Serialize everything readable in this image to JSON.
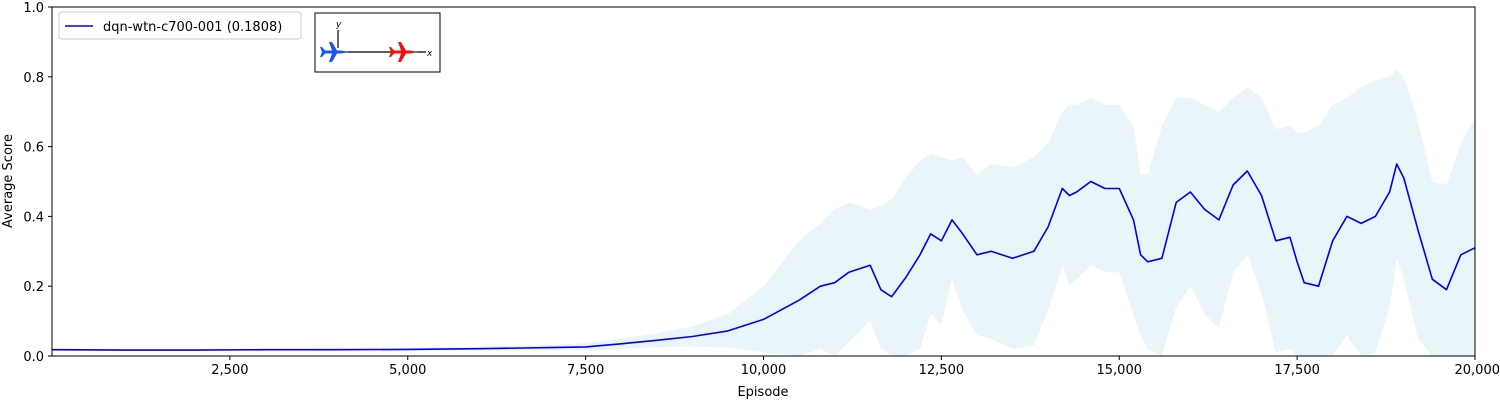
{
  "chart_data": {
    "type": "line",
    "xlabel": "Episode",
    "ylabel": "Average Score",
    "xlim": [
      0,
      20000
    ],
    "ylim": [
      0,
      1.0
    ],
    "x_ticks": [
      2500,
      5000,
      7500,
      10000,
      12500,
      15000,
      17500,
      20000
    ],
    "x_tick_labels": [
      "2,500",
      "5,000",
      "7,500",
      "10,000",
      "12,500",
      "15,000",
      "17,500",
      "20,000"
    ],
    "y_ticks": [
      0.0,
      0.2,
      0.4,
      0.6,
      0.8,
      1.0
    ],
    "y_tick_labels": [
      "0.0",
      "0.2",
      "0.4",
      "0.6",
      "0.8",
      "1.0"
    ],
    "grid": false,
    "legend": {
      "position": "top-left",
      "entries": [
        "dqn-wtn-c700-001 (0.1808)"
      ]
    },
    "inset_icon": "two-aircraft-xy-diagram-icon",
    "inset_axis_labels": [
      "y",
      "x"
    ],
    "colors": {
      "mean_line": "#0000ee",
      "std_band": "#add8e6",
      "blue_aircraft": "#1a55ee",
      "red_aircraft": "#ee1111"
    },
    "series": [
      {
        "name": "dqn-wtn-c700-001 (0.1808)",
        "x": [
          0,
          1000,
          2000,
          3000,
          4000,
          5000,
          6000,
          7000,
          7500,
          8000,
          8500,
          9000,
          9500,
          10000,
          10500,
          10800,
          11000,
          11200,
          11500,
          11650,
          11800,
          12000,
          12200,
          12350,
          12500,
          12650,
          12800,
          13000,
          13200,
          13500,
          13800,
          14000,
          14200,
          14300,
          14400,
          14600,
          14800,
          15000,
          15200,
          15300,
          15400,
          15600,
          15800,
          16000,
          16200,
          16400,
          16600,
          16800,
          17000,
          17200,
          17400,
          17500,
          17600,
          17800,
          18000,
          18200,
          18400,
          18600,
          18800,
          18900,
          19000,
          19200,
          19400,
          19600,
          19800,
          20000
        ],
        "mean": [
          0.018,
          0.017,
          0.017,
          0.018,
          0.018,
          0.019,
          0.021,
          0.024,
          0.026,
          0.035,
          0.045,
          0.056,
          0.072,
          0.105,
          0.16,
          0.2,
          0.21,
          0.24,
          0.26,
          0.19,
          0.17,
          0.225,
          0.29,
          0.35,
          0.33,
          0.39,
          0.35,
          0.29,
          0.3,
          0.28,
          0.3,
          0.37,
          0.48,
          0.46,
          0.47,
          0.5,
          0.48,
          0.48,
          0.39,
          0.29,
          0.27,
          0.28,
          0.44,
          0.47,
          0.42,
          0.39,
          0.49,
          0.53,
          0.46,
          0.33,
          0.34,
          0.27,
          0.21,
          0.2,
          0.33,
          0.4,
          0.38,
          0.4,
          0.47,
          0.55,
          0.51,
          0.36,
          0.22,
          0.19,
          0.29,
          0.31
        ],
        "upper": [
          0.02,
          0.019,
          0.019,
          0.02,
          0.021,
          0.023,
          0.026,
          0.032,
          0.037,
          0.05,
          0.065,
          0.085,
          0.12,
          0.2,
          0.33,
          0.38,
          0.42,
          0.44,
          0.42,
          0.43,
          0.45,
          0.51,
          0.56,
          0.58,
          0.57,
          0.56,
          0.57,
          0.52,
          0.55,
          0.54,
          0.57,
          0.61,
          0.7,
          0.72,
          0.72,
          0.74,
          0.72,
          0.72,
          0.66,
          0.52,
          0.52,
          0.66,
          0.74,
          0.74,
          0.72,
          0.7,
          0.74,
          0.77,
          0.74,
          0.65,
          0.66,
          0.64,
          0.64,
          0.66,
          0.72,
          0.74,
          0.77,
          0.79,
          0.8,
          0.82,
          0.8,
          0.67,
          0.5,
          0.49,
          0.61,
          0.68
        ],
        "lower": [
          0.016,
          0.015,
          0.015,
          0.016,
          0.015,
          0.015,
          0.016,
          0.016,
          0.015,
          0.02,
          0.025,
          0.027,
          0.024,
          0.01,
          0.0,
          0.02,
          0.0,
          0.04,
          0.1,
          0.02,
          0.0,
          0.0,
          0.02,
          0.12,
          0.09,
          0.22,
          0.13,
          0.06,
          0.05,
          0.02,
          0.03,
          0.13,
          0.26,
          0.2,
          0.22,
          0.26,
          0.24,
          0.24,
          0.12,
          0.06,
          0.02,
          0.0,
          0.14,
          0.2,
          0.12,
          0.08,
          0.24,
          0.29,
          0.18,
          0.01,
          0.02,
          0.0,
          0.0,
          0.0,
          0.0,
          0.06,
          0.0,
          0.01,
          0.14,
          0.28,
          0.22,
          0.05,
          0.0,
          0.0,
          0.0,
          0.0
        ]
      }
    ]
  }
}
